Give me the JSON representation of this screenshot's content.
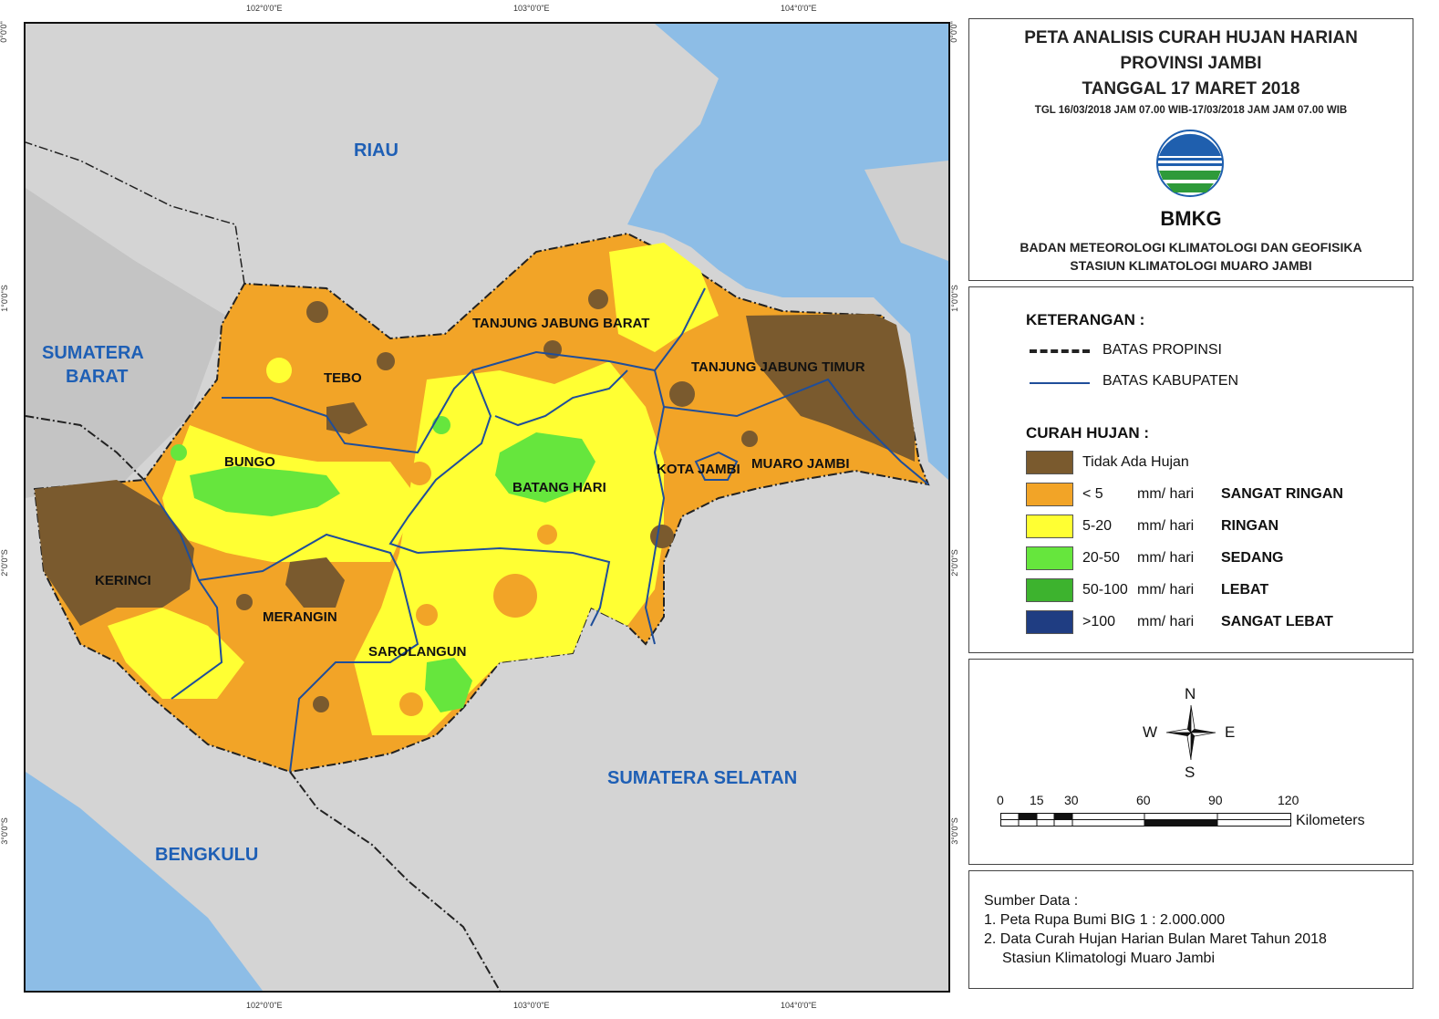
{
  "coordinates": {
    "top": [
      "102°0'0\"E",
      "103°0'0\"E",
      "104°0'0\"E"
    ],
    "bottom": [
      "102°0'0\"E",
      "103°0'0\"E",
      "104°0'0\"E"
    ],
    "left": [
      "0°0'0\"",
      "1°0'0\"S",
      "2°0'0\"S",
      "3°0'0\"S"
    ],
    "right": [
      "0°0'0\"",
      "1°0'0\"S",
      "2°0'0\"S",
      "3°0'0\"S"
    ]
  },
  "map": {
    "regions": {
      "riau": "RIAU",
      "sumatera_barat_1": "SUMATERA",
      "sumatera_barat_2": "BARAT",
      "sumatera_selatan": "SUMATERA SELATAN",
      "bengkulu": "BENGKULU"
    },
    "districts": {
      "tebo": "TEBO",
      "bungo": "BUNGO",
      "kerinci": "KERINCI",
      "merangin": "MERANGIN",
      "sarolangun": "SAROLANGUN",
      "batang_hari": "BATANG HARI",
      "tanjung_jabung_barat": "TANJUNG JABUNG BARAT",
      "tanjung_jabung_timur": "TANJUNG JABUNG TIMUR",
      "kota_jambi": "KOTA JAMBI",
      "muaro_jambi": "MUARO JAMBI"
    },
    "colors": {
      "sea": "#8dbde6",
      "land": "#d4d4d4",
      "no_rain": "#7a5a2e",
      "very_light": "#f2a427",
      "light": "#ffff33",
      "moderate": "#66e63d",
      "heavy": "#3db32e",
      "very_heavy": "#1f3d82"
    }
  },
  "header": {
    "line1": "PETA ANALISIS CURAH HUJAN HARIAN",
    "line2": "PROVINSI JAMBI",
    "line3": "TANGGAL 17 MARET 2018",
    "line4": "TGL 16/03/2018 JAM 07.00 WIB-17/03/2018 JAM JAM 07.00 WIB",
    "logo_text": "BMKG",
    "agency1": "BADAN METEOROLOGI KLIMATOLOGI DAN GEOFISIKA",
    "agency2": "STASIUN KLIMATOLOGI MUARO JAMBI"
  },
  "legend": {
    "title": "KETERANGAN :",
    "batas_propinsi": "BATAS PROPINSI",
    "batas_kabupaten": "BATAS KABUPATEN",
    "rain_title": "CURAH HUJAN :",
    "items": [
      {
        "range": "Tidak Ada Hujan",
        "unit": "",
        "category": "",
        "color": "#7a5a2e"
      },
      {
        "range": "< 5",
        "unit": "mm/ hari",
        "category": "SANGAT RINGAN",
        "color": "#f2a427"
      },
      {
        "range": "5-20",
        "unit": "mm/ hari",
        "category": "RINGAN",
        "color": "#ffff33"
      },
      {
        "range": "20-50",
        "unit": "mm/ hari",
        "category": "SEDANG",
        "color": "#66e63d"
      },
      {
        "range": "50-100",
        "unit": "mm/ hari",
        "category": "LEBAT",
        "color": "#3db32e"
      },
      {
        "range": ">100",
        "unit": "mm/ hari",
        "category": "SANGAT LEBAT",
        "color": "#1f3d82"
      }
    ]
  },
  "compass": {
    "n": "N",
    "s": "S",
    "e": "E",
    "w": "W"
  },
  "scale": {
    "ticks": [
      "0",
      "15",
      "30",
      "60",
      "90",
      "120"
    ],
    "unit": "Kilometers"
  },
  "source": {
    "title": "Sumber Data :",
    "line1": "1. Peta Rupa Bumi BIG 1 : 2.000.000",
    "line2": "2. Data Curah Hujan Harian Bulan Maret Tahun 2018",
    "line3": "Stasiun Klimatologi Muaro Jambi"
  }
}
